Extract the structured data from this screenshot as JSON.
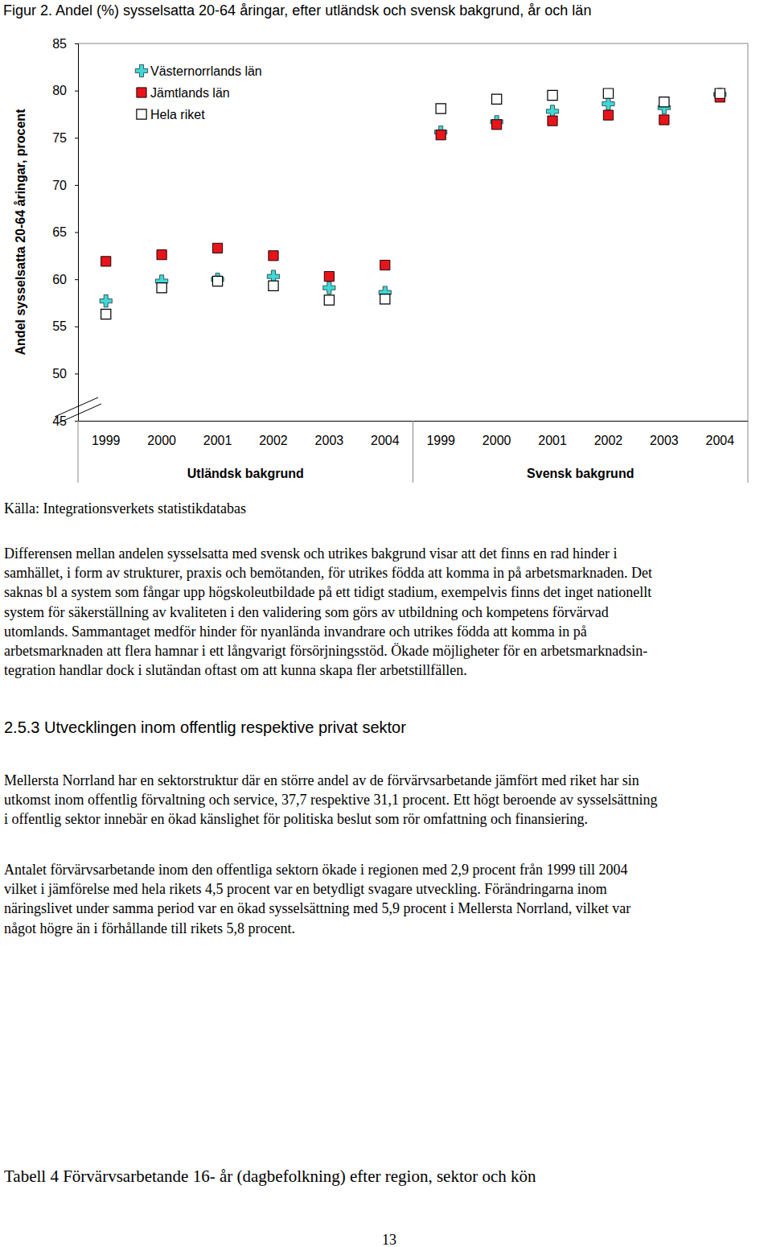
{
  "chart_data": {
    "type": "scatter",
    "title": "Figur 2. Andel (%) sysselsatta 20-64 åringar, efter utländsk och svensk bakgrund, år och län",
    "y_label": "Andel sysselsatta 20-64 åringar, procent",
    "categories": [
      "1999",
      "2000",
      "2001",
      "2002",
      "2003",
      "2004",
      "1999",
      "2000",
      "2001",
      "2002",
      "2003",
      "2004"
    ],
    "annotations": [
      "Utländsk bakgrund",
      "Svensk bakgrund"
    ],
    "ylim": [
      45,
      85
    ],
    "yticks": [
      45,
      50,
      55,
      60,
      65,
      70,
      75,
      80,
      85
    ],
    "grid": false,
    "legend": "upper left",
    "series": [
      {
        "name": "Västernorrlands län",
        "color": "#3fd8d8",
        "marker": "plus",
        "values": [
          57.7,
          59.8,
          60.0,
          60.3,
          59.1,
          58.6,
          75.6,
          76.7,
          77.8,
          78.6,
          78.2,
          79.6
        ]
      },
      {
        "name": "Jämtlands län",
        "color": "#e8141a",
        "marker": "square",
        "values": [
          61.9,
          62.6,
          63.3,
          62.5,
          60.3,
          61.5,
          75.3,
          76.4,
          76.8,
          77.4,
          76.9,
          79.3
        ]
      },
      {
        "name": "Hela riket",
        "color": "#000000",
        "marker": "open-square",
        "values": [
          56.3,
          59.1,
          59.8,
          59.3,
          57.8,
          57.9,
          78.1,
          79.1,
          79.5,
          79.7,
          78.8,
          79.7
        ]
      }
    ]
  },
  "document": {
    "source": "Källa: Integrationsverkets statistikdatabas",
    "paragraphs": [
      [
        "Differensen mellan andelen sysselsatta med svensk och utrikes bakgrund visar att det finns en rad hinder i",
        "samhället, i form av strukturer, praxis och bemötanden, för utrikes födda att komma in på arbetsmarknaden. Det",
        "saknas bl a system som fångar upp högskoleutbildade på ett tidigt stadium, exempelvis finns det inget nationellt",
        "system för säkerställning av kvaliteten i den validering som görs av utbildning och kompetens förvärvad",
        "utomlands. Sammantaget medför hinder för nyanlända invandrare och utrikes födda att komma in på",
        "arbetsmarknaden att flera hamnar i ett långvarigt försörjningsstöd. Ökade möjligheter för en arbetsmarknadsin-",
        "tegration handlar dock i slutändan oftast om att kunna skapa fler arbetstillfällen."
      ]
    ],
    "heading": "2.5.3 Utvecklingen inom offentlig respektive privat sektor",
    "section_paragraphs": [
      [
        "Mellersta Norrland har en sektorstruktur där en större andel av de förvärvsarbetande jämfört med riket har sin",
        "utkomst inom offentlig förvaltning och service, 37,7 respektive 31,1 procent. Ett högt beroende av sysselsättning",
        "i offentlig sektor innebär en ökad känslighet för politiska beslut som rör omfattning och finansiering."
      ],
      [
        "Antalet förvärvsarbetande inom den offentliga sektorn ökade i regionen med 2,9 procent från 1999 till 2004",
        "vilket i jämförelse med hela rikets 4,5 procent var en betydligt svagare utveckling. Förändringarna inom",
        "näringslivet under samma period var en ökad sysselsättning med 5,9 procent i Mellersta Norrland, vilket var",
        "något högre än i förhållande till rikets 5,8 procent."
      ]
    ],
    "table_caption": "Tabell 4 Förvärvsarbetande 16- år (dagbefolkning) efter region, sektor och kön",
    "page_number": 13
  }
}
